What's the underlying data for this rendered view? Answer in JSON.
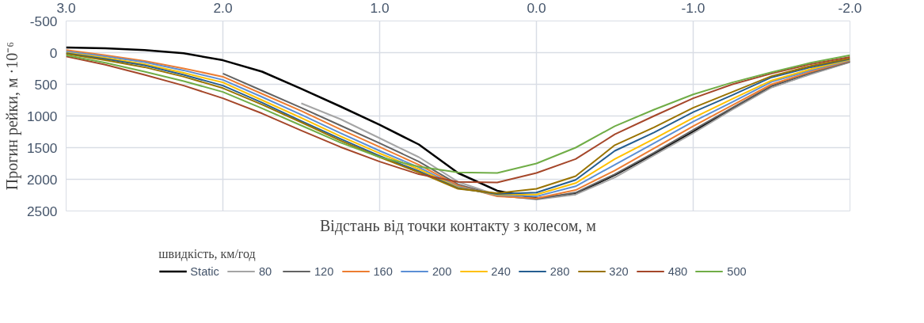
{
  "chart_data": {
    "type": "line",
    "xlabel": "Відстань від точки контакту з колесом, м",
    "ylabel": "Прогин рейки, м ·10⁻⁶",
    "legend_title": "швидкість, км/год",
    "xlim": [
      3.0,
      -2.0
    ],
    "xticks": [
      {
        "value": 3,
        "label": "3.0"
      },
      {
        "value": 2,
        "label": "2.0"
      },
      {
        "value": 1,
        "label": "1.0"
      },
      {
        "value": 0,
        "label": "0.0"
      },
      {
        "value": -1,
        "label": "-1.0"
      },
      {
        "value": -2,
        "label": "-2.0"
      }
    ],
    "ylim": [
      2500,
      -500
    ],
    "yticks": [
      -500,
      0,
      500,
      1000,
      1500,
      2000,
      2500
    ],
    "grid": true,
    "legend": "bottom",
    "marker": "none",
    "line_style": "solid",
    "x": [
      3.0,
      2.75,
      2.5,
      2.25,
      2.0,
      1.75,
      1.5,
      1.25,
      1.0,
      0.75,
      0.5,
      0.25,
      0.0,
      -0.25,
      -0.5,
      -0.75,
      -1.0,
      -1.25,
      -1.5,
      -1.75,
      -2.0
    ],
    "series": [
      {
        "name": "Static",
        "color": "#000000",
        "values": [
          -80,
          -70,
          -40,
          10,
          120,
          300,
          570,
          850,
          1140,
          1450,
          1900,
          2180,
          2300,
          2230,
          1930,
          1600,
          1250,
          880,
          540,
          330,
          140
        ]
      },
      {
        "name": "80",
        "color": "#a5a5a5",
        "values": [
          null,
          null,
          null,
          null,
          null,
          null,
          800,
          1050,
          1350,
          1650,
          2040,
          2250,
          2320,
          2240,
          1970,
          1620,
          1270,
          900,
          550,
          340,
          150
        ]
      },
      {
        "name": "120",
        "color": "#636363",
        "values": [
          null,
          null,
          null,
          null,
          330,
          600,
          870,
          1150,
          1430,
          1720,
          2080,
          2260,
          2310,
          2210,
          1920,
          1580,
          1220,
          870,
          520,
          320,
          140
        ]
      },
      {
        "name": "160",
        "color": "#ed7d31",
        "values": [
          -40,
          40,
          130,
          250,
          380,
          650,
          920,
          1210,
          1490,
          1770,
          2100,
          2270,
          2300,
          2170,
          1860,
          1510,
          1160,
          830,
          500,
          300,
          130
        ]
      },
      {
        "name": "200",
        "color": "#5b8fd5",
        "values": [
          -20,
          60,
          150,
          280,
          430,
          700,
          980,
          1270,
          1550,
          1810,
          2120,
          2250,
          2270,
          2110,
          1770,
          1430,
          1090,
          780,
          460,
          280,
          120
        ]
      },
      {
        "name": "240",
        "color": "#ffc000",
        "values": [
          0,
          80,
          180,
          320,
          470,
          750,
          1030,
          1320,
          1590,
          1840,
          2130,
          2240,
          2240,
          2060,
          1680,
          1360,
          1030,
          730,
          440,
          260,
          110
        ]
      },
      {
        "name": "280",
        "color": "#255e91",
        "values": [
          10,
          100,
          200,
          350,
          520,
          790,
          1080,
          1360,
          1630,
          1870,
          2140,
          2230,
          2210,
          2010,
          1550,
          1260,
          940,
          670,
          390,
          230,
          100
        ]
      },
      {
        "name": "320",
        "color": "#997300",
        "values": [
          20,
          120,
          230,
          380,
          560,
          820,
          1100,
          1390,
          1650,
          1890,
          2150,
          2220,
          2150,
          1950,
          1460,
          1180,
          870,
          620,
          370,
          210,
          90
        ]
      },
      {
        "name": "480",
        "color": "#a5472a",
        "values": [
          60,
          190,
          350,
          520,
          720,
          960,
          1230,
          1490,
          1720,
          1920,
          2040,
          2050,
          1900,
          1680,
          1290,
          1000,
          720,
          500,
          330,
          180,
          70
        ]
      },
      {
        "name": "500",
        "color": "#70ad47",
        "values": [
          40,
          160,
          300,
          450,
          620,
          880,
          1150,
          1420,
          1650,
          1800,
          1890,
          1900,
          1750,
          1500,
          1160,
          900,
          660,
          470,
          310,
          160,
          40
        ]
      }
    ]
  }
}
